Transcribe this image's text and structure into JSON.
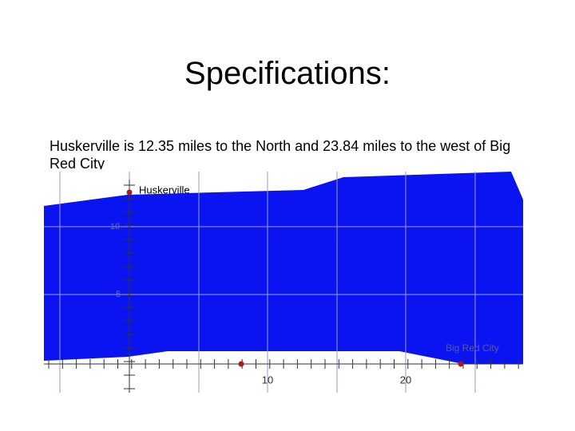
{
  "title": "Specifications:",
  "body": "Huskerville is 12.35 miles to the North and 23.84 miles to the west of Big Red City",
  "map": {
    "places": [
      "Huskerville",
      "Big Red City"
    ],
    "x_tick_labels": [
      "10",
      "20"
    ],
    "y_tick_labels": [
      "10",
      "5"
    ]
  }
}
